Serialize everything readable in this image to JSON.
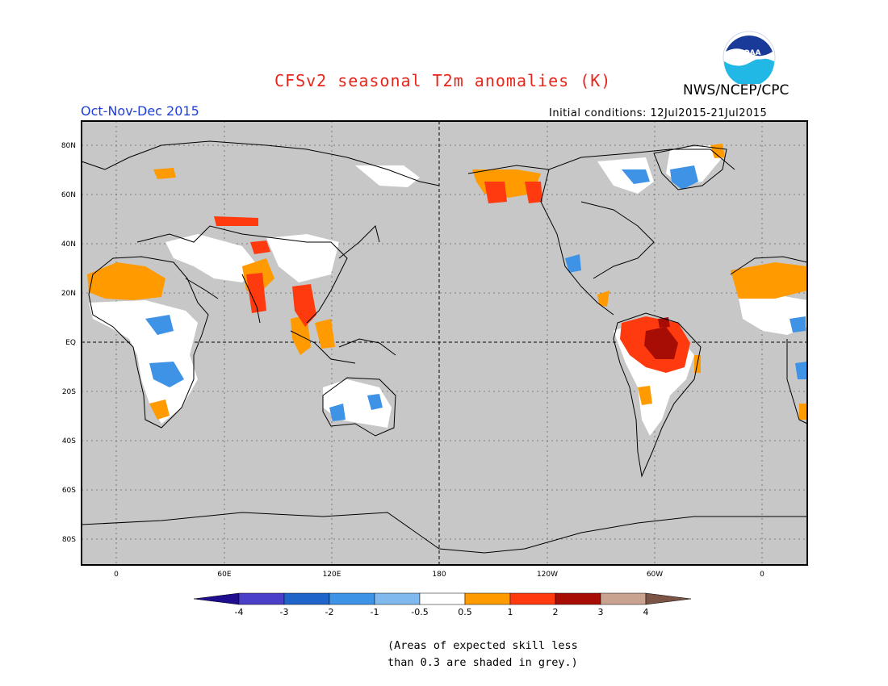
{
  "title": "CFSv2 seasonal T2m anomalies (K)",
  "org": "NWS/NCEP/CPC",
  "logo_text": "NOAA",
  "season": "Oct-Nov-Dec 2015",
  "initial_conditions": "Initial conditions: 12Jul2015-21Jul2015",
  "lat_labels": [
    "80N",
    "60N",
    "40N",
    "20N",
    "EQ",
    "20S",
    "40S",
    "60S",
    "80S"
  ],
  "lon_labels": [
    "0",
    "60E",
    "120E",
    "180",
    "120W",
    "60W",
    "0"
  ],
  "colorbar": {
    "labels": [
      "-4",
      "-3",
      "-2",
      "-1",
      "-0.5",
      "0.5",
      "1",
      "2",
      "3",
      "4"
    ],
    "colors": [
      "#1e0d8f",
      "#4a3fc8",
      "#1f64c9",
      "#3f93e6",
      "#7fb9ee",
      "#ffffff",
      "#ff9a00",
      "#ff3a0f",
      "#a70d05",
      "#c9a290",
      "#7b5445"
    ]
  },
  "note_line1": "(Areas of expected skill less",
  "note_line2": "than 0.3 are shaded in grey.)",
  "colors": {
    "grey_mask": "#c7c7c7",
    "coast": "#000000"
  }
}
